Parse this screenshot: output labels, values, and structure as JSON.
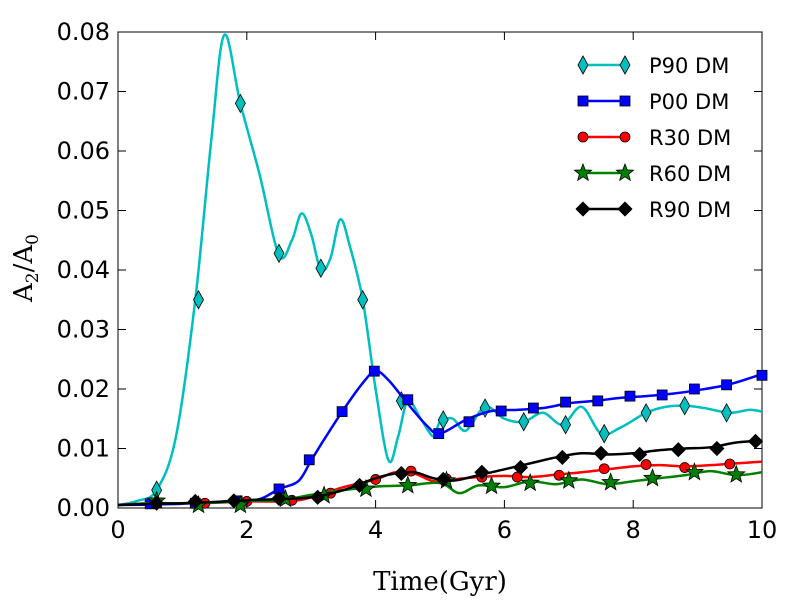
{
  "chart_data": {
    "type": "line",
    "xlabel": "Time(Gyr)",
    "ylabel_main": "A",
    "ylabel_sub1": "2",
    "ylabel_slash": "/A",
    "ylabel_sub2": "0",
    "xlim": [
      0,
      10
    ],
    "ylim": [
      0,
      0.08
    ],
    "xticks": [
      0,
      2,
      4,
      6,
      8,
      10
    ],
    "xtick_labels": [
      "0",
      "2",
      "4",
      "6",
      "8",
      "10"
    ],
    "yticks": [
      0,
      0.01,
      0.02,
      0.03,
      0.04,
      0.05,
      0.06,
      0.07,
      0.08
    ],
    "ytick_labels": [
      "0.00",
      "0.01",
      "0.02",
      "0.03",
      "0.04",
      "0.05",
      "0.06",
      "0.07",
      "0.08"
    ],
    "grid": false,
    "legend_position": "top-right",
    "series": [
      {
        "name": "P90 DM",
        "color": "#00bfbf",
        "marker": "diamond",
        "x": [
          0,
          0.3,
          0.6,
          0.9,
          1.2,
          1.45,
          1.65,
          1.9,
          2.2,
          2.5,
          2.7,
          2.85,
          3.0,
          3.15,
          3.3,
          3.45,
          3.6,
          3.8,
          4.0,
          4.2,
          4.35,
          4.5,
          4.7,
          4.9,
          5.0,
          5.2,
          5.4,
          5.7,
          6.0,
          6.3,
          6.6,
          6.9,
          7.2,
          7.5,
          7.8,
          8.2,
          8.5,
          8.8,
          9.1,
          9.5,
          9.8,
          10
        ],
        "y": [
          0.0005,
          0.0012,
          0.003,
          0.012,
          0.035,
          0.062,
          0.0795,
          0.068,
          0.056,
          0.0425,
          0.045,
          0.0495,
          0.046,
          0.04,
          0.042,
          0.0485,
          0.044,
          0.035,
          0.02,
          0.008,
          0.012,
          0.018,
          0.015,
          0.012,
          0.0145,
          0.015,
          0.013,
          0.017,
          0.015,
          0.0145,
          0.016,
          0.014,
          0.017,
          0.0125,
          0.0135,
          0.016,
          0.017,
          0.0172,
          0.0168,
          0.016,
          0.0165,
          0.0162
        ],
        "markers_x": [
          0.6,
          1.25,
          1.9,
          2.5,
          3.15,
          3.8,
          4.4,
          5.05,
          5.7,
          6.3,
          6.95,
          7.55,
          8.2,
          8.8,
          9.45
        ],
        "markers_y": [
          0.003,
          0.035,
          0.068,
          0.0428,
          0.0403,
          0.035,
          0.018,
          0.0148,
          0.0168,
          0.0145,
          0.014,
          0.0125,
          0.016,
          0.0172,
          0.016
        ]
      },
      {
        "name": "P00 DM",
        "color": "#0000ff",
        "marker": "square",
        "x": [
          0,
          0.6,
          1.2,
          1.8,
          2.2,
          2.5,
          2.8,
          3.0,
          3.2,
          3.5,
          3.8,
          4.0,
          4.2,
          4.5,
          4.8,
          5.0,
          5.4,
          5.8,
          6.2,
          6.6,
          7.0,
          7.4,
          7.8,
          8.2,
          8.6,
          9.0,
          9.5,
          10
        ],
        "y": [
          0.0005,
          0.0006,
          0.0008,
          0.0012,
          0.0015,
          0.0032,
          0.0045,
          0.008,
          0.0115,
          0.0165,
          0.021,
          0.023,
          0.0215,
          0.0175,
          0.0138,
          0.0125,
          0.0148,
          0.0163,
          0.0165,
          0.0168,
          0.0176,
          0.018,
          0.0185,
          0.0188,
          0.0192,
          0.0198,
          0.0208,
          0.0225
        ],
        "markers_x": [
          0.5,
          1.2,
          1.85,
          2.5,
          2.97,
          3.48,
          3.98,
          4.5,
          4.98,
          5.45,
          5.95,
          6.45,
          6.95,
          7.45,
          7.95,
          8.45,
          8.95,
          9.45,
          10
        ],
        "markers_y": [
          0.0007,
          0.0008,
          0.0012,
          0.0032,
          0.0081,
          0.0162,
          0.023,
          0.0182,
          0.0125,
          0.0145,
          0.0163,
          0.0168,
          0.0178,
          0.018,
          0.0188,
          0.019,
          0.02,
          0.0207,
          0.0223
        ]
      },
      {
        "name": "R30 DM",
        "color": "#ff0000",
        "marker": "circle",
        "x": [
          0,
          0.5,
          1.0,
          1.5,
          2.0,
          2.5,
          2.8,
          3.0,
          3.5,
          4.0,
          4.3,
          4.6,
          4.9,
          5.2,
          5.6,
          6.0,
          6.4,
          6.8,
          7.2,
          7.6,
          8.0,
          8.4,
          8.8,
          9.2,
          9.6,
          10
        ],
        "y": [
          0.0005,
          0.0008,
          0.0008,
          0.0009,
          0.0011,
          0.0011,
          0.0013,
          0.0018,
          0.0035,
          0.0048,
          0.006,
          0.0058,
          0.0045,
          0.0048,
          0.0052,
          0.0054,
          0.0052,
          0.0056,
          0.006,
          0.0065,
          0.007,
          0.0072,
          0.007,
          0.0072,
          0.0075,
          0.0078
        ],
        "markers_x": [
          0.6,
          1.35,
          2.0,
          2.7,
          3.3,
          4.0,
          4.55,
          5.1,
          5.65,
          6.2,
          6.85,
          7.55,
          8.2,
          8.8,
          9.5
        ],
        "markers_y": [
          0.0008,
          0.0008,
          0.0011,
          0.0013,
          0.0025,
          0.0048,
          0.0062,
          0.0049,
          0.0052,
          0.0052,
          0.0055,
          0.0066,
          0.0073,
          0.0068,
          0.0074
        ]
      },
      {
        "name": "R60 DM",
        "color": "#008000",
        "marker": "star",
        "x": [
          0,
          0.5,
          1.0,
          1.5,
          2.0,
          2.5,
          3.0,
          3.5,
          4.0,
          4.5,
          5.0,
          5.3,
          5.6,
          6.0,
          6.4,
          6.8,
          7.2,
          7.6,
          8.0,
          8.4,
          8.8,
          9.2,
          9.6,
          10
        ],
        "y": [
          0.0005,
          0.0008,
          0.0008,
          0.0009,
          0.0012,
          0.0013,
          0.0022,
          0.003,
          0.0036,
          0.0038,
          0.0042,
          0.0025,
          0.0038,
          0.0035,
          0.0045,
          0.004,
          0.0048,
          0.004,
          0.0045,
          0.005,
          0.0055,
          0.0062,
          0.0055,
          0.006
        ],
        "markers_x": [
          0.6,
          1.25,
          1.9,
          2.6,
          3.2,
          3.85,
          4.5,
          5.1,
          5.8,
          6.4,
          7.0,
          7.65,
          8.3,
          8.95,
          9.6
        ],
        "markers_y": [
          0.0012,
          0.0005,
          0.0005,
          0.0015,
          0.0021,
          0.0032,
          0.0038,
          0.0046,
          0.0037,
          0.0042,
          0.0046,
          0.0043,
          0.005,
          0.006,
          0.0056
        ]
      },
      {
        "name": "R90 DM",
        "color": "#000000",
        "marker": "diamond-filled",
        "x": [
          0,
          0.5,
          1.0,
          1.5,
          2.0,
          2.5,
          3.0,
          3.5,
          4.0,
          4.3,
          4.6,
          4.9,
          5.2,
          5.6,
          6.0,
          6.4,
          6.8,
          7.2,
          7.6,
          8.0,
          8.4,
          8.8,
          9.2,
          9.6,
          10
        ],
        "y": [
          0.0005,
          0.0007,
          0.0008,
          0.001,
          0.0013,
          0.0015,
          0.0018,
          0.003,
          0.005,
          0.0058,
          0.006,
          0.005,
          0.0046,
          0.0055,
          0.0065,
          0.0075,
          0.0085,
          0.0092,
          0.009,
          0.0092,
          0.0097,
          0.01,
          0.0102,
          0.011,
          0.0113
        ],
        "markers_x": [
          0.6,
          1.2,
          1.8,
          2.5,
          3.1,
          3.75,
          4.4,
          5.05,
          5.65,
          6.25,
          6.9,
          7.5,
          8.1,
          8.7,
          9.3,
          9.9
        ],
        "markers_y": [
          0.0008,
          0.0011,
          0.0012,
          0.0016,
          0.0018,
          0.0038,
          0.0058,
          0.0048,
          0.006,
          0.0068,
          0.0085,
          0.0092,
          0.009,
          0.0098,
          0.01,
          0.0112
        ]
      }
    ]
  }
}
